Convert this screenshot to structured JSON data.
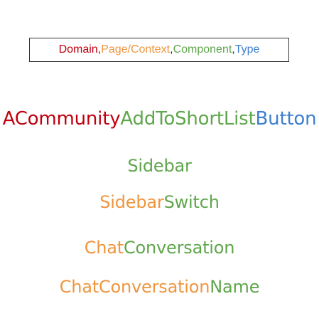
{
  "legend": {
    "items": [
      {
        "label": "Domain",
        "role": "domain"
      },
      {
        "label": "Page/Context",
        "role": "page"
      },
      {
        "label": "Component",
        "role": "component"
      },
      {
        "label": "Type",
        "role": "type"
      }
    ],
    "separator": ", "
  },
  "colors": {
    "domain": "#c0000f",
    "page": "#ef963f",
    "component": "#5fa64c",
    "type": "#3d7fcf",
    "border": "#333333"
  },
  "lines": [
    {
      "segments": [
        {
          "text": "ACommunity",
          "role": "domain"
        },
        {
          "text": "AddToShortList",
          "role": "component"
        },
        {
          "text": "Button",
          "role": "type"
        }
      ]
    },
    {
      "segments": [
        {
          "text": "Sidebar",
          "role": "component"
        }
      ]
    },
    {
      "segments": [
        {
          "text": "Sidebar",
          "role": "page"
        },
        {
          "text": "Switch",
          "role": "component"
        }
      ]
    },
    {
      "segments": [
        {
          "text": "Chat",
          "role": "page"
        },
        {
          "text": "Conversation",
          "role": "component"
        }
      ]
    },
    {
      "segments": [
        {
          "text": "ChatConversation",
          "role": "page"
        },
        {
          "text": "Name",
          "role": "component"
        }
      ]
    }
  ]
}
